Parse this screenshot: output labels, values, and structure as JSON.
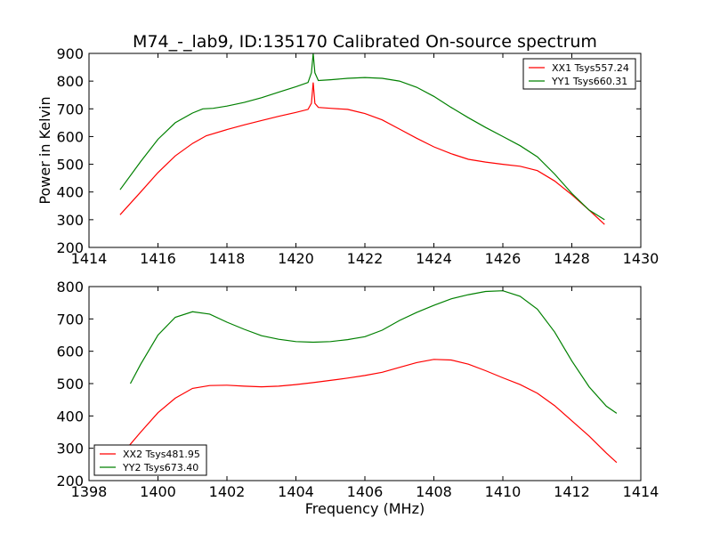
{
  "figure": {
    "title": "M74_-_lab9, ID:135170 Calibrated On-source spectrum"
  },
  "chart_data": [
    {
      "type": "line",
      "xlabel": "",
      "ylabel": "Power in Kelvin",
      "xlim": [
        1414,
        1430
      ],
      "ylim": [
        200,
        900
      ],
      "xticks": [
        1414,
        1416,
        1418,
        1420,
        1422,
        1424,
        1426,
        1428,
        1430
      ],
      "yticks": [
        200,
        300,
        400,
        500,
        600,
        700,
        800,
        900
      ],
      "grid": false,
      "legend": "top-right",
      "series": [
        {
          "name": "XX1 Tsys557.24",
          "color": "#ff0000",
          "x": [
            1414.9,
            1415.5,
            1416.0,
            1416.5,
            1417.0,
            1417.4,
            1418.0,
            1418.5,
            1419.0,
            1419.5,
            1420.0,
            1420.35,
            1420.45,
            1420.5,
            1420.55,
            1420.65,
            1421.0,
            1421.5,
            1422.0,
            1422.5,
            1423.0,
            1423.5,
            1424.0,
            1424.5,
            1425.0,
            1425.5,
            1426.0,
            1426.5,
            1427.0,
            1427.5,
            1428.0,
            1428.5,
            1428.95
          ],
          "values": [
            318,
            400,
            470,
            530,
            575,
            603,
            625,
            642,
            658,
            673,
            687,
            698,
            720,
            795,
            720,
            705,
            702,
            698,
            683,
            660,
            627,
            594,
            563,
            538,
            518,
            508,
            500,
            493,
            477,
            440,
            390,
            335,
            283
          ]
        },
        {
          "name": "YY1 Tsys660.31",
          "color": "#008000",
          "x": [
            1414.9,
            1415.5,
            1416.0,
            1416.5,
            1417.0,
            1417.3,
            1417.6,
            1418.0,
            1418.5,
            1419.0,
            1419.5,
            1420.0,
            1420.35,
            1420.45,
            1420.5,
            1420.55,
            1420.65,
            1421.0,
            1421.5,
            1422.0,
            1422.5,
            1423.0,
            1423.5,
            1424.0,
            1424.5,
            1425.0,
            1425.5,
            1426.0,
            1426.5,
            1427.0,
            1427.5,
            1428.0,
            1428.5,
            1428.95
          ],
          "values": [
            408,
            510,
            590,
            650,
            685,
            700,
            702,
            710,
            723,
            740,
            760,
            780,
            795,
            830,
            900,
            830,
            802,
            805,
            810,
            813,
            810,
            800,
            778,
            745,
            705,
            668,
            633,
            600,
            567,
            527,
            465,
            395,
            335,
            300
          ]
        }
      ]
    },
    {
      "type": "line",
      "xlabel": "Frequency (MHz)",
      "ylabel": "",
      "xlim": [
        1398,
        1414
      ],
      "ylim": [
        200,
        800
      ],
      "xticks": [
        1398,
        1400,
        1402,
        1404,
        1406,
        1408,
        1410,
        1412,
        1414
      ],
      "yticks": [
        200,
        300,
        400,
        500,
        600,
        700,
        800
      ],
      "grid": false,
      "legend": "bottom-left",
      "series": [
        {
          "name": "XX2 Tsys481.95",
          "color": "#ff0000",
          "x": [
            1399.1,
            1399.5,
            1400.0,
            1400.5,
            1401.0,
            1401.5,
            1402.0,
            1402.5,
            1403.0,
            1403.5,
            1404.0,
            1404.5,
            1405.0,
            1405.5,
            1406.0,
            1406.5,
            1407.0,
            1407.5,
            1408.0,
            1408.5,
            1409.0,
            1409.5,
            1410.0,
            1410.5,
            1411.0,
            1411.5,
            1412.0,
            1412.5,
            1413.0,
            1413.3
          ],
          "values": [
            300,
            350,
            410,
            455,
            485,
            494,
            495,
            492,
            490,
            492,
            497,
            503,
            510,
            517,
            525,
            535,
            550,
            565,
            575,
            573,
            560,
            540,
            518,
            497,
            470,
            432,
            385,
            338,
            285,
            256
          ]
        },
        {
          "name": "YY2 Tsys673.40",
          "color": "#008000",
          "x": [
            1399.2,
            1399.5,
            1400.0,
            1400.5,
            1401.0,
            1401.5,
            1402.0,
            1402.5,
            1403.0,
            1403.5,
            1404.0,
            1404.5,
            1405.0,
            1405.5,
            1406.0,
            1406.5,
            1407.0,
            1407.5,
            1408.0,
            1408.5,
            1409.0,
            1409.5,
            1410.0,
            1410.5,
            1411.0,
            1411.5,
            1412.0,
            1412.5,
            1413.0,
            1413.3
          ],
          "values": [
            500,
            560,
            650,
            705,
            722,
            715,
            690,
            668,
            648,
            637,
            630,
            628,
            630,
            636,
            645,
            665,
            695,
            720,
            742,
            762,
            775,
            785,
            787,
            770,
            730,
            660,
            570,
            490,
            430,
            408
          ]
        }
      ]
    }
  ]
}
